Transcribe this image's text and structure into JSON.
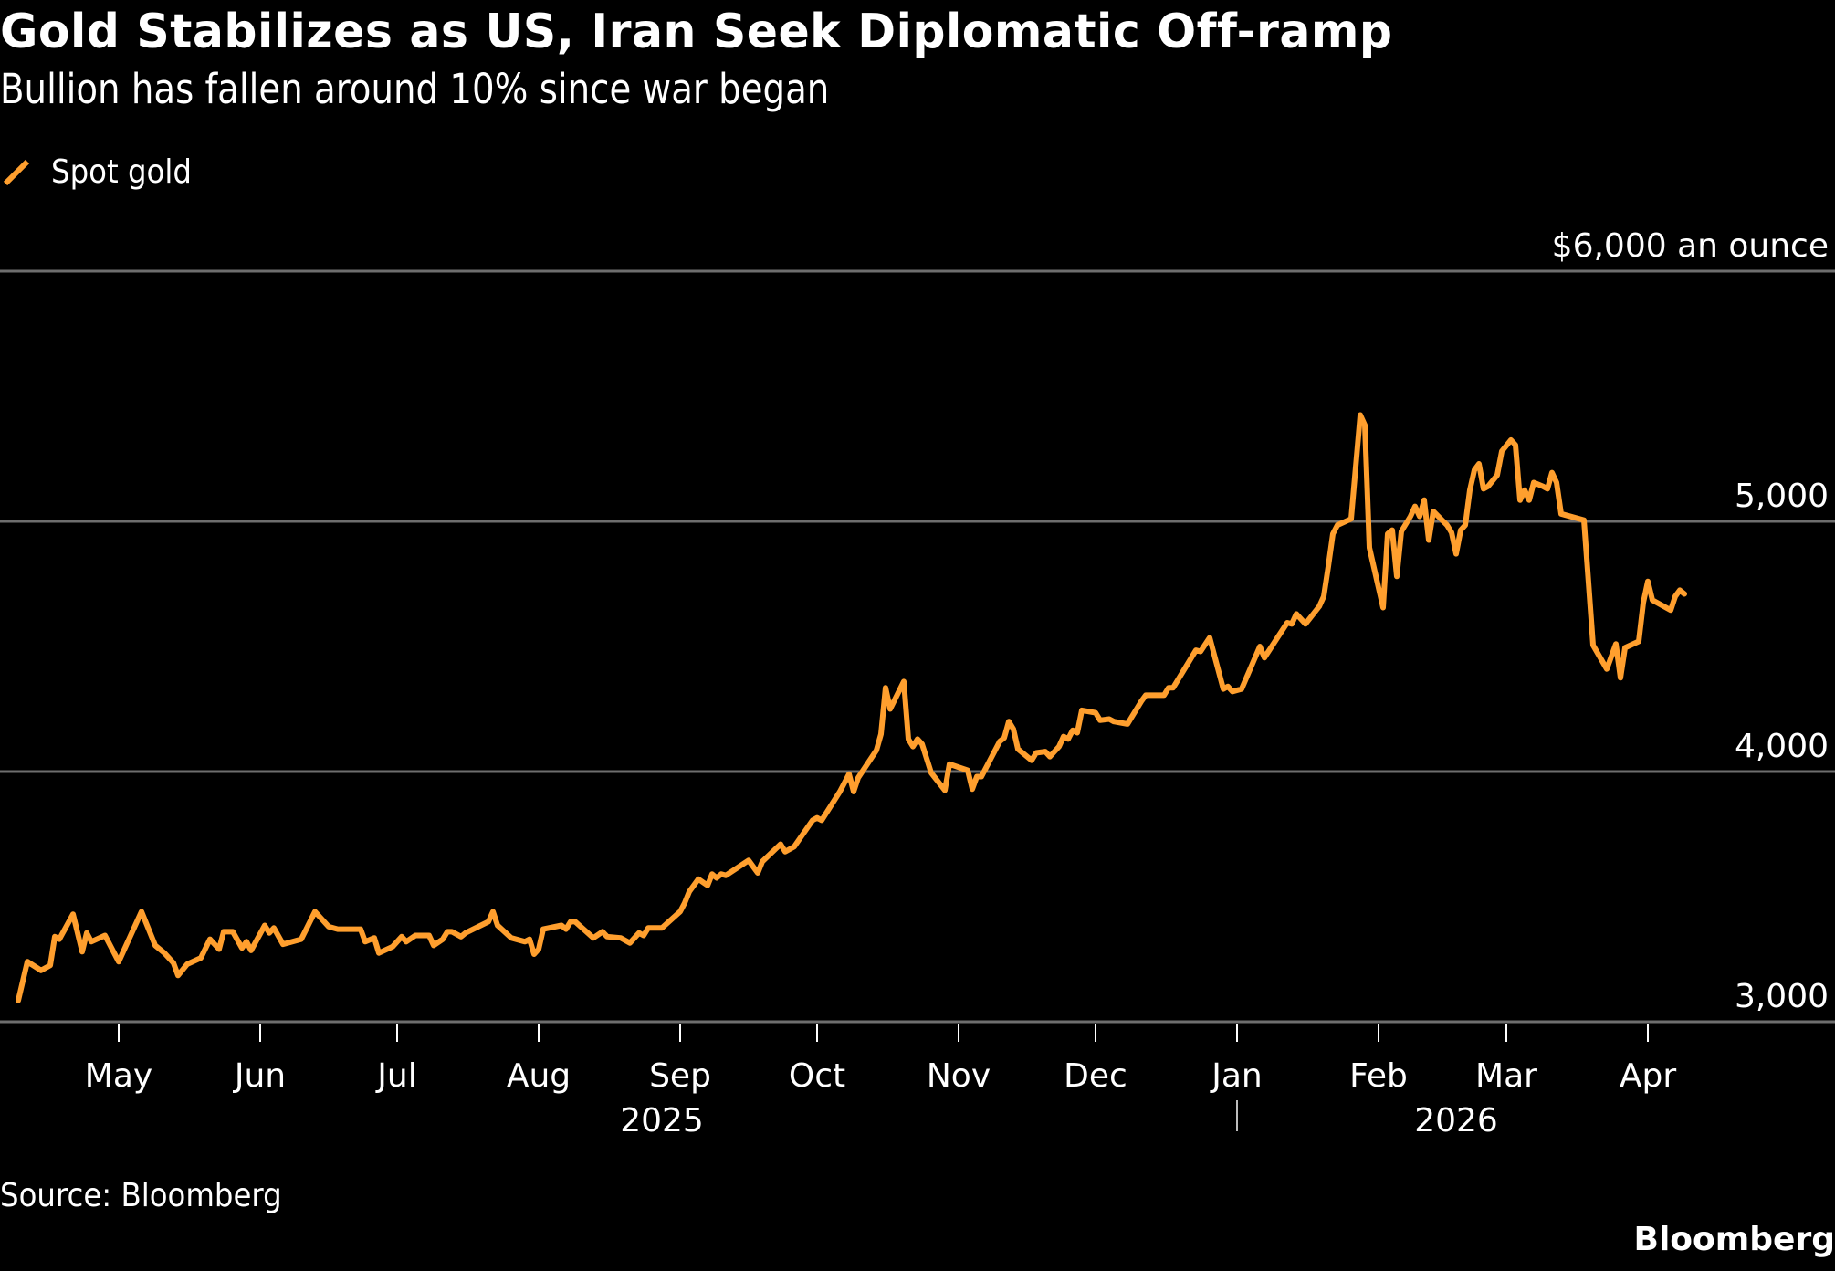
{
  "header": {
    "title": "Gold Stabilizes as US, Iran Seek Diplomatic Off-ramp",
    "subtitle": "Bullion has fallen around 10% since war began"
  },
  "legend": [
    {
      "label": "Spot gold",
      "color": "#FF9F2E",
      "icon": "diagonal-line-swatch"
    }
  ],
  "footer": {
    "source": "Source: Bloomberg",
    "brand": "Bloomberg"
  },
  "chart_data": {
    "type": "line",
    "title": "Gold Stabilizes as US, Iran Seek Diplomatic Off-ramp",
    "subtitle": "Bullion has fallen around 10% since war began",
    "xlabel": "",
    "ylabel": "$ an ounce",
    "background": "#000000",
    "grid": true,
    "legend_position": "top-left",
    "y_axis_side": "right",
    "ylim": [
      3000,
      6000
    ],
    "y_ticks": [
      {
        "value": 6000,
        "label": "$6,000 an ounce"
      },
      {
        "value": 5000,
        "label": "5,000"
      },
      {
        "value": 4000,
        "label": "4,000"
      },
      {
        "value": 3000,
        "label": "3,000"
      }
    ],
    "x_range": [
      "2025-04-05",
      "2026-05-12"
    ],
    "x_ticks": [
      {
        "date": "2025-05-01",
        "label": "May"
      },
      {
        "date": "2025-06-01",
        "label": "Jun"
      },
      {
        "date": "2025-07-01",
        "label": "Jul"
      },
      {
        "date": "2025-08-01",
        "label": "Aug"
      },
      {
        "date": "2025-09-01",
        "label": "Sep"
      },
      {
        "date": "2025-10-01",
        "label": "Oct"
      },
      {
        "date": "2025-11-01",
        "label": "Nov"
      },
      {
        "date": "2025-12-01",
        "label": "Dec"
      },
      {
        "date": "2026-01-01",
        "label": "Jan"
      },
      {
        "date": "2026-02-01",
        "label": "Feb"
      },
      {
        "date": "2026-03-01",
        "label": "Mar"
      },
      {
        "date": "2026-04-01",
        "label": "Apr"
      }
    ],
    "year_labels": [
      {
        "label": "2025",
        "date": "2025-08-28"
      },
      {
        "label": "2026",
        "date": "2026-02-18"
      }
    ],
    "year_separator": "2026-01-01",
    "colors": {
      "line": "#FF9F2E",
      "grid": "#6E6E6E",
      "year_label": "#BDBDBD",
      "text": "#FFFFFF"
    },
    "series": [
      {
        "name": "Spot gold",
        "points": [
          [
            "2025-04-09",
            3085
          ],
          [
            "2025-04-11",
            3240
          ],
          [
            "2025-04-14",
            3205
          ],
          [
            "2025-04-16",
            3225
          ],
          [
            "2025-04-17",
            3340
          ],
          [
            "2025-04-18",
            3330
          ],
          [
            "2025-04-21",
            3430
          ],
          [
            "2025-04-23",
            3280
          ],
          [
            "2025-04-24",
            3355
          ],
          [
            "2025-04-25",
            3320
          ],
          [
            "2025-04-28",
            3345
          ],
          [
            "2025-05-01",
            3240
          ],
          [
            "2025-05-06",
            3440
          ],
          [
            "2025-05-09",
            3305
          ],
          [
            "2025-05-11",
            3275
          ],
          [
            "2025-05-13",
            3235
          ],
          [
            "2025-05-14",
            3185
          ],
          [
            "2025-05-16",
            3230
          ],
          [
            "2025-05-19",
            3255
          ],
          [
            "2025-05-21",
            3330
          ],
          [
            "2025-05-23",
            3290
          ],
          [
            "2025-05-24",
            3360
          ],
          [
            "2025-05-26",
            3360
          ],
          [
            "2025-05-28",
            3295
          ],
          [
            "2025-05-29",
            3320
          ],
          [
            "2025-05-30",
            3285
          ],
          [
            "2025-06-02",
            3385
          ],
          [
            "2025-06-03",
            3355
          ],
          [
            "2025-06-04",
            3375
          ],
          [
            "2025-06-06",
            3310
          ],
          [
            "2025-06-10",
            3330
          ],
          [
            "2025-06-13",
            3440
          ],
          [
            "2025-06-16",
            3380
          ],
          [
            "2025-06-18",
            3370
          ],
          [
            "2025-06-23",
            3370
          ],
          [
            "2025-06-24",
            3320
          ],
          [
            "2025-06-26",
            3335
          ],
          [
            "2025-06-27",
            3275
          ],
          [
            "2025-06-30",
            3300
          ],
          [
            "2025-07-02",
            3340
          ],
          [
            "2025-07-03",
            3320
          ],
          [
            "2025-07-05",
            3345
          ],
          [
            "2025-07-08",
            3345
          ],
          [
            "2025-07-09",
            3305
          ],
          [
            "2025-07-11",
            3330
          ],
          [
            "2025-07-12",
            3360
          ],
          [
            "2025-07-13",
            3360
          ],
          [
            "2025-07-15",
            3340
          ],
          [
            "2025-07-16",
            3355
          ],
          [
            "2025-07-21",
            3400
          ],
          [
            "2025-07-22",
            3440
          ],
          [
            "2025-07-23",
            3385
          ],
          [
            "2025-07-26",
            3335
          ],
          [
            "2025-07-29",
            3320
          ],
          [
            "2025-07-30",
            3330
          ],
          [
            "2025-07-31",
            3270
          ],
          [
            "2025-08-01",
            3290
          ],
          [
            "2025-08-02",
            3370
          ],
          [
            "2025-08-06",
            3385
          ],
          [
            "2025-08-07",
            3370
          ],
          [
            "2025-08-08",
            3400
          ],
          [
            "2025-08-09",
            3400
          ],
          [
            "2025-08-13",
            3335
          ],
          [
            "2025-08-15",
            3360
          ],
          [
            "2025-08-16",
            3340
          ],
          [
            "2025-08-19",
            3335
          ],
          [
            "2025-08-21",
            3315
          ],
          [
            "2025-08-23",
            3355
          ],
          [
            "2025-08-24",
            3345
          ],
          [
            "2025-08-25",
            3375
          ],
          [
            "2025-08-28",
            3375
          ],
          [
            "2025-09-01",
            3440
          ],
          [
            "2025-09-02",
            3475
          ],
          [
            "2025-09-03",
            3520
          ],
          [
            "2025-09-05",
            3570
          ],
          [
            "2025-09-07",
            3545
          ],
          [
            "2025-09-08",
            3590
          ],
          [
            "2025-09-09",
            3575
          ],
          [
            "2025-09-10",
            3590
          ],
          [
            "2025-09-11",
            3585
          ],
          [
            "2025-09-16",
            3645
          ],
          [
            "2025-09-18",
            3595
          ],
          [
            "2025-09-19",
            3640
          ],
          [
            "2025-09-23",
            3710
          ],
          [
            "2025-09-24",
            3680
          ],
          [
            "2025-09-26",
            3700
          ],
          [
            "2025-09-30",
            3805
          ],
          [
            "2025-10-01",
            3815
          ],
          [
            "2025-10-02",
            3805
          ],
          [
            "2025-10-06",
            3920
          ],
          [
            "2025-10-08",
            3990
          ],
          [
            "2025-10-09",
            3920
          ],
          [
            "2025-10-10",
            3975
          ],
          [
            "2025-10-14",
            4085
          ],
          [
            "2025-10-15",
            4150
          ],
          [
            "2025-10-16",
            4335
          ],
          [
            "2025-10-17",
            4250
          ],
          [
            "2025-10-20",
            4360
          ],
          [
            "2025-10-21",
            4130
          ],
          [
            "2025-10-22",
            4100
          ],
          [
            "2025-10-23",
            4130
          ],
          [
            "2025-10-24",
            4110
          ],
          [
            "2025-10-26",
            3995
          ],
          [
            "2025-10-29",
            3925
          ],
          [
            "2025-10-30",
            4030
          ],
          [
            "2025-11-03",
            4005
          ],
          [
            "2025-11-04",
            3930
          ],
          [
            "2025-11-05",
            3980
          ],
          [
            "2025-11-06",
            3980
          ],
          [
            "2025-11-10",
            4120
          ],
          [
            "2025-11-11",
            4135
          ],
          [
            "2025-11-12",
            4200
          ],
          [
            "2025-11-13",
            4170
          ],
          [
            "2025-11-14",
            4090
          ],
          [
            "2025-11-17",
            4045
          ],
          [
            "2025-11-18",
            4075
          ],
          [
            "2025-11-20",
            4080
          ],
          [
            "2025-11-21",
            4060
          ],
          [
            "2025-11-23",
            4100
          ],
          [
            "2025-11-24",
            4140
          ],
          [
            "2025-11-25",
            4130
          ],
          [
            "2025-11-26",
            4165
          ],
          [
            "2025-11-27",
            4155
          ],
          [
            "2025-11-28",
            4245
          ],
          [
            "2025-12-01",
            4235
          ],
          [
            "2025-12-02",
            4205
          ],
          [
            "2025-12-04",
            4210
          ],
          [
            "2025-12-05",
            4200
          ],
          [
            "2025-12-08",
            4190
          ],
          [
            "2025-12-09",
            4220
          ],
          [
            "2025-12-11",
            4280
          ],
          [
            "2025-12-12",
            4305
          ],
          [
            "2025-12-16",
            4305
          ],
          [
            "2025-12-17",
            4335
          ],
          [
            "2025-12-18",
            4335
          ],
          [
            "2025-12-23",
            4485
          ],
          [
            "2025-12-24",
            4480
          ],
          [
            "2025-12-26",
            4535
          ],
          [
            "2025-12-29",
            4330
          ],
          [
            "2025-12-30",
            4340
          ],
          [
            "2025-12-31",
            4320
          ],
          [
            "2026-01-02",
            4330
          ],
          [
            "2026-01-06",
            4500
          ],
          [
            "2026-01-07",
            4455
          ],
          [
            "2026-01-12",
            4595
          ],
          [
            "2026-01-13",
            4590
          ],
          [
            "2026-01-14",
            4630
          ],
          [
            "2026-01-16",
            4590
          ],
          [
            "2026-01-19",
            4660
          ],
          [
            "2026-01-20",
            4700
          ],
          [
            "2026-01-21",
            4820
          ],
          [
            "2026-01-22",
            4950
          ],
          [
            "2026-01-23",
            4985
          ],
          [
            "2026-01-26",
            5010
          ],
          [
            "2026-01-28",
            5425
          ],
          [
            "2026-01-29",
            5385
          ],
          [
            "2026-01-30",
            4895
          ],
          [
            "2026-02-02",
            4655
          ],
          [
            "2026-02-03",
            4950
          ],
          [
            "2026-02-04",
            4965
          ],
          [
            "2026-02-05",
            4780
          ],
          [
            "2026-02-06",
            4960
          ],
          [
            "2026-02-08",
            5020
          ],
          [
            "2026-02-09",
            5060
          ],
          [
            "2026-02-10",
            5020
          ],
          [
            "2026-02-11",
            5085
          ],
          [
            "2026-02-12",
            4925
          ],
          [
            "2026-02-13",
            5040
          ],
          [
            "2026-02-16",
            4985
          ],
          [
            "2026-02-17",
            4955
          ],
          [
            "2026-02-18",
            4870
          ],
          [
            "2026-02-19",
            4965
          ],
          [
            "2026-02-20",
            4985
          ],
          [
            "2026-02-21",
            5125
          ],
          [
            "2026-02-22",
            5205
          ],
          [
            "2026-02-23",
            5230
          ],
          [
            "2026-02-24",
            5130
          ],
          [
            "2026-02-25",
            5140
          ],
          [
            "2026-02-27",
            5185
          ],
          [
            "2026-02-28",
            5280
          ],
          [
            "2026-03-02",
            5325
          ],
          [
            "2026-03-03",
            5305
          ],
          [
            "2026-03-04",
            5085
          ],
          [
            "2026-03-05",
            5125
          ],
          [
            "2026-03-06",
            5085
          ],
          [
            "2026-03-07",
            5155
          ],
          [
            "2026-03-09",
            5140
          ],
          [
            "2026-03-10",
            5130
          ],
          [
            "2026-03-11",
            5195
          ],
          [
            "2026-03-12",
            5155
          ],
          [
            "2026-03-13",
            5030
          ],
          [
            "2026-03-17",
            5010
          ],
          [
            "2026-03-18",
            5005
          ],
          [
            "2026-03-20",
            4505
          ],
          [
            "2026-03-23",
            4410
          ],
          [
            "2026-03-25",
            4510
          ],
          [
            "2026-03-26",
            4375
          ],
          [
            "2026-03-27",
            4495
          ],
          [
            "2026-03-30",
            4520
          ],
          [
            "2026-03-31",
            4675
          ],
          [
            "2026-04-01",
            4760
          ],
          [
            "2026-04-02",
            4685
          ],
          [
            "2026-04-06",
            4645
          ],
          [
            "2026-04-07",
            4700
          ],
          [
            "2026-04-08",
            4725
          ],
          [
            "2026-04-09",
            4710
          ]
        ]
      }
    ]
  }
}
